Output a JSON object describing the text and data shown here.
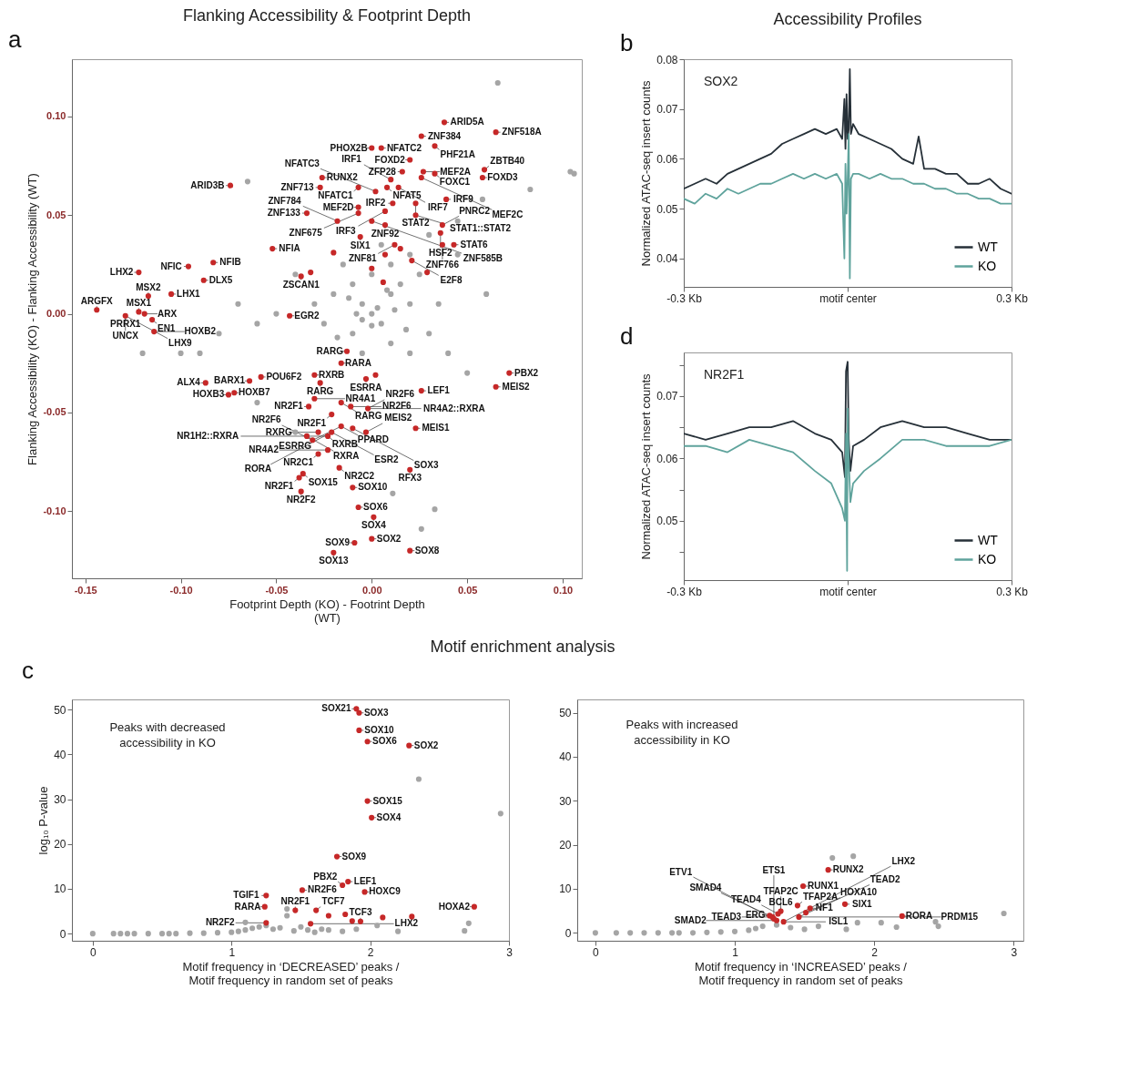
{
  "chart_data": [
    {
      "type": "scatter",
      "title": "Flanking Accessibility & Footprint Depth",
      "xlabel": "Footprint Depth (KO) - Footrint Depth (WT)",
      "ylabel": "Flanking Accessibility (KO) - Flanking Accessibility (WT)",
      "marker": "circle",
      "xlim": [
        -0.157,
        0.11
      ],
      "ylim": [
        -0.134,
        0.129
      ],
      "xticks": [
        {
          "value": -0.15,
          "label": "-0.15"
        },
        {
          "value": -0.1,
          "label": "-0.10"
        },
        {
          "value": -0.05,
          "label": "-0.05"
        },
        {
          "value": 0,
          "label": "0.00"
        },
        {
          "value": 0.05,
          "label": "0.05"
        },
        {
          "value": 0.1,
          "label": "0.10"
        }
      ],
      "yticks": [
        {
          "value": -0.1,
          "label": "-0.10"
        },
        {
          "value": -0.05,
          "label": "-0.05"
        },
        {
          "value": 0,
          "label": "0.00"
        },
        {
          "value": 0.05,
          "label": "0.05"
        },
        {
          "value": 0.1,
          "label": "0.10"
        }
      ],
      "series": [
        {
          "color": "#a5a5a5",
          "x": [
            0.066,
            0.104,
            0.106,
            0.083,
            0.058,
            0.045,
            0.03,
            0.02,
            0.01,
            0.0,
            -0.01,
            -0.02,
            0.01,
            0.02,
            0.0,
            -0.005,
            0.005,
            -0.01,
            0.01,
            0.015,
            -0.015,
            0.005,
            -0.005,
            0.02,
            0.03,
            -0.025,
            -0.03,
            0.025,
            0.035,
            0.04,
            0.05,
            0.06,
            0.045,
            -0.04,
            -0.05,
            -0.06,
            -0.07,
            -0.08,
            -0.09,
            -0.1,
            -0.12,
            -0.065,
            -0.06,
            -0.04,
            0.011,
            0.033,
            0.026,
            -0.005,
            0.003,
            -0.012,
            0.018,
            -0.018,
            0.008,
            0.0,
            -0.008,
            0.012
          ],
          "values": [
            0.117,
            0.072,
            0.071,
            0.063,
            0.058,
            0.047,
            0.04,
            0.03,
            0.025,
            0.02,
            0.015,
            0.01,
            0.01,
            0.005,
            0.0,
            0.005,
            -0.005,
            -0.01,
            -0.015,
            0.015,
            0.025,
            0.035,
            -0.02,
            -0.02,
            -0.01,
            -0.005,
            0.005,
            0.02,
            0.005,
            -0.02,
            -0.03,
            0.01,
            0.03,
            0.02,
            0.0,
            -0.005,
            0.005,
            -0.01,
            -0.02,
            -0.02,
            -0.02,
            0.067,
            -0.045,
            -0.06,
            -0.091,
            -0.099,
            -0.109,
            -0.003,
            0.003,
            0.008,
            -0.008,
            -0.012,
            0.012,
            -0.006,
            0.0,
            0.002
          ]
        },
        {
          "color": "#c62828",
          "x": [
            0.038,
            0.026,
            0.065,
            0.033,
            0.005,
            0.0,
            0.02,
            0.016,
            0.027,
            0.033,
            0.059,
            0.058,
            0.01,
            -0.026,
            -0.027,
            -0.007,
            0.002,
            0.008,
            0.014,
            -0.074,
            0.039,
            0.023,
            0.011,
            -0.007,
            -0.034,
            -0.007,
            0.023,
            -0.018,
            0.037,
            0.036,
            0.007,
            0.043,
            -0.052,
            -0.037,
            -0.032,
            0.021,
            0.015,
            0.007,
            0.0,
            0.006,
            0.029,
            -0.02,
            -0.122,
            -0.096,
            -0.083,
            -0.088,
            -0.105,
            -0.117,
            -0.144,
            -0.129,
            -0.122,
            -0.119,
            -0.115,
            -0.114,
            -0.043,
            -0.058,
            -0.064,
            -0.087,
            -0.075,
            -0.072,
            -0.013,
            -0.016,
            -0.03,
            -0.027,
            -0.003,
            0.002,
            0.026,
            0.072,
            0.065,
            -0.033,
            -0.03,
            -0.021,
            -0.011,
            -0.002,
            -0.016,
            -0.016,
            -0.01,
            -0.003,
            0.023,
            -0.034,
            -0.028,
            -0.031,
            -0.021,
            -0.023,
            -0.028,
            -0.023,
            -0.017,
            0.02,
            -0.036,
            -0.038,
            -0.037,
            -0.01,
            -0.007,
            0.001,
            0.0,
            -0.009,
            -0.02,
            0.02,
            0.026,
            0.007,
            0.0,
            -0.006,
            0.012,
            0.037
          ],
          "values": [
            0.097,
            0.09,
            0.092,
            0.085,
            0.084,
            0.084,
            0.078,
            0.072,
            0.072,
            0.071,
            0.073,
            0.069,
            0.068,
            0.069,
            0.064,
            0.064,
            0.062,
            0.064,
            0.064,
            0.065,
            0.058,
            0.056,
            0.056,
            0.054,
            0.051,
            0.051,
            0.05,
            0.047,
            0.045,
            0.041,
            0.045,
            0.035,
            0.033,
            0.019,
            0.021,
            0.027,
            0.033,
            0.03,
            0.023,
            0.016,
            0.021,
            0.031,
            0.021,
            0.024,
            0.026,
            0.017,
            0.01,
            0.009,
            0.002,
            -0.001,
            0.001,
            0.0,
            -0.003,
            -0.009,
            -0.001,
            -0.032,
            -0.034,
            -0.035,
            -0.041,
            -0.04,
            -0.019,
            -0.025,
            -0.031,
            -0.035,
            -0.033,
            -0.031,
            -0.039,
            -0.03,
            -0.037,
            -0.047,
            -0.043,
            -0.051,
            -0.047,
            -0.048,
            -0.045,
            -0.057,
            -0.058,
            -0.06,
            -0.058,
            -0.062,
            -0.06,
            -0.064,
            -0.06,
            -0.062,
            -0.071,
            -0.069,
            -0.078,
            -0.079,
            -0.081,
            -0.083,
            -0.09,
            -0.088,
            -0.098,
            -0.103,
            -0.114,
            -0.116,
            -0.121,
            -0.12,
            0.069,
            0.052,
            0.047,
            0.039,
            0.035,
            0.035
          ]
        }
      ],
      "annotations": [
        "a",
        {
          "text": "NFATC2",
          "x": 0.005,
          "y": 0.084
        },
        {
          "text": "ZFP28",
          "x": 0.016,
          "y": 0.072
        },
        {
          "text": "ZNF384",
          "x": 0.026,
          "y": 0.09
        },
        {
          "text": "ARID5A",
          "x": 0.038,
          "y": 0.097
        },
        {
          "text": "PHF21A",
          "x": 0.033,
          "y": 0.085
        },
        {
          "text": "ZNF518A",
          "x": 0.065,
          "y": 0.092
        },
        {
          "text": "PHOX2B",
          "x": 0.0,
          "y": 0.084
        },
        {
          "text": "FOXD2",
          "x": 0.02,
          "y": 0.078
        },
        {
          "text": "MEF2A",
          "x": 0.027,
          "y": 0.072
        },
        {
          "text": "FOXD3",
          "x": 0.058,
          "y": 0.069
        },
        {
          "text": "RUNX2",
          "x": -0.026,
          "y": 0.069
        },
        {
          "text": "NFAT5",
          "x": 0.008,
          "y": 0.064
        },
        {
          "text": "IRF1",
          "x": 0.01,
          "y": 0.068
        },
        {
          "text": "FOXC1",
          "x": 0.033,
          "y": 0.071
        },
        {
          "text": "ZBTB40",
          "x": 0.059,
          "y": 0.073
        },
        {
          "text": "ZNF713",
          "x": -0.027,
          "y": 0.064
        },
        {
          "text": "NFATC1",
          "x": -0.007,
          "y": 0.064
        },
        {
          "text": "IRF7",
          "x": 0.014,
          "y": 0.064
        },
        {
          "text": "MEF2C",
          "x": 0.026,
          "y": 0.069
        },
        {
          "text": "IRF9",
          "x": 0.039,
          "y": 0.058
        },
        {
          "text": "ARID3B",
          "x": -0.074,
          "y": 0.065
        },
        {
          "text": "MEF2D",
          "x": -0.007,
          "y": 0.054
        },
        {
          "text": "NFATC3",
          "x": 0.002,
          "y": 0.062
        },
        {
          "text": "IRF2",
          "x": 0.011,
          "y": 0.056
        },
        {
          "text": "STAT2",
          "x": 0.023,
          "y": 0.056
        },
        {
          "text": "ZNF133",
          "x": -0.034,
          "y": 0.051
        },
        {
          "text": "ZNF675",
          "x": -0.007,
          "y": 0.051
        },
        {
          "text": "IRF3",
          "x": 0.007,
          "y": 0.052
        },
        {
          "text": "STAT1::STAT2",
          "x": 0.023,
          "y": 0.05
        },
        {
          "text": "ZNF784",
          "x": -0.018,
          "y": 0.047
        },
        {
          "text": "ZNF585B",
          "x": 0.0,
          "y": 0.047
        },
        {
          "text": "ZNF92",
          "x": 0.007,
          "y": 0.045
        },
        {
          "text": "PNRC2",
          "x": 0.037,
          "y": 0.045
        },
        {
          "text": "SIX1",
          "x": -0.006,
          "y": 0.039
        },
        {
          "text": "ZNF81",
          "x": 0.012,
          "y": 0.035
        },
        {
          "text": "HSF2",
          "x": 0.036,
          "y": 0.041
        },
        {
          "text": "STAT6",
          "x": 0.043,
          "y": 0.035
        },
        {
          "text": "E2F8",
          "x": 0.021,
          "y": 0.027
        },
        {
          "text": "ZNF766",
          "x": 0.037,
          "y": 0.035
        },
        {
          "text": "NFIA",
          "x": -0.052,
          "y": 0.033
        },
        {
          "text": "ZSCAN1",
          "x": -0.037,
          "y": 0.019
        },
        {
          "text": "NFIC",
          "x": -0.096,
          "y": 0.024
        },
        {
          "text": "NFIB",
          "x": -0.083,
          "y": 0.026
        },
        {
          "text": "LHX2",
          "x": -0.122,
          "y": 0.021
        },
        {
          "text": "MSX1",
          "x": -0.122,
          "y": 0.001
        },
        {
          "text": "DLX5",
          "x": -0.088,
          "y": 0.017
        },
        {
          "text": "ARGFX",
          "x": -0.144,
          "y": 0.002
        },
        {
          "text": "MSX2",
          "x": -0.117,
          "y": 0.009
        },
        {
          "text": "LHX1",
          "x": -0.105,
          "y": 0.01
        },
        {
          "text": "PRRX1",
          "x": -0.129,
          "y": -0.001
        },
        {
          "text": "ARX",
          "x": -0.119,
          "y": 0.0
        },
        {
          "text": "UNCX",
          "x": -0.129,
          "y": -0.001
        },
        {
          "text": "EN1",
          "x": -0.115,
          "y": -0.003
        },
        {
          "text": "LHX9",
          "x": -0.129,
          "y": -0.001
        },
        {
          "text": "HOXB2",
          "x": -0.114,
          "y": -0.009
        },
        {
          "text": "EGR2",
          "x": -0.043,
          "y": -0.001
        },
        {
          "text": "POU6F2",
          "x": -0.058,
          "y": -0.032
        },
        {
          "text": "BARX1",
          "x": -0.064,
          "y": -0.034
        },
        {
          "text": "ALX4",
          "x": -0.087,
          "y": -0.035
        },
        {
          "text": "HOXB7",
          "x": -0.072,
          "y": -0.04
        },
        {
          "text": "HOXB3",
          "x": -0.075,
          "y": -0.041
        },
        {
          "text": "RARG",
          "x": -0.013,
          "y": -0.019
        },
        {
          "text": "RXRB",
          "x": -0.03,
          "y": -0.031
        },
        {
          "text": "RARA",
          "x": -0.016,
          "y": -0.025
        },
        {
          "text": "NR2F1",
          "x": -0.033,
          "y": -0.047
        },
        {
          "text": "RARG",
          "x": -0.027,
          "y": -0.035
        },
        {
          "text": "ESRRA",
          "x": -0.003,
          "y": -0.033
        },
        {
          "text": "LEF1",
          "x": 0.026,
          "y": -0.039
        },
        {
          "text": "PBX2",
          "x": 0.072,
          "y": -0.03
        },
        {
          "text": "MEIS2",
          "x": 0.065,
          "y": -0.037
        },
        {
          "text": "NR4A1",
          "x": -0.03,
          "y": -0.043
        },
        {
          "text": "RARG",
          "x": -0.016,
          "y": -0.045
        },
        {
          "text": "NR2F6",
          "x": -0.011,
          "y": -0.047
        },
        {
          "text": "NR4A2::RXRA",
          "x": -0.002,
          "y": -0.048
        },
        {
          "text": "NR2F1",
          "x": -0.021,
          "y": -0.051
        },
        {
          "text": "NR2F6",
          "x": -0.002,
          "y": -0.048
        },
        {
          "text": "PPARD",
          "x": -0.016,
          "y": -0.057
        },
        {
          "text": "ESRRG",
          "x": -0.016,
          "y": -0.057
        },
        {
          "text": "RXRG",
          "x": -0.028,
          "y": -0.06
        },
        {
          "text": "RXRA",
          "x": -0.034,
          "y": -0.062
        },
        {
          "text": "MEIS2",
          "x": -0.003,
          "y": -0.06
        },
        {
          "text": "MEIS1",
          "x": 0.023,
          "y": -0.058
        },
        {
          "text": "NR2F6",
          "x": -0.031,
          "y": -0.064
        },
        {
          "text": "RXRB",
          "x": -0.023,
          "y": -0.062
        },
        {
          "text": "ESR2",
          "x": -0.021,
          "y": -0.06
        },
        {
          "text": "SOX3",
          "x": -0.01,
          "y": -0.058
        },
        {
          "text": "NR2C1",
          "x": -0.028,
          "y": -0.071
        },
        {
          "text": "NR4A2",
          "x": -0.023,
          "y": -0.069
        },
        {
          "text": "RORA",
          "x": -0.021,
          "y": -0.06
        },
        {
          "text": "RFX3",
          "x": 0.02,
          "y": -0.079
        },
        {
          "text": "SOX15",
          "x": -0.036,
          "y": -0.081
        },
        {
          "text": "NR1H2::RXRA",
          "x": -0.023,
          "y": -0.062
        },
        {
          "text": "NR2C2",
          "x": -0.017,
          "y": -0.078
        },
        {
          "text": "NR2F1",
          "x": -0.038,
          "y": -0.083
        },
        {
          "text": "NR2F2",
          "x": -0.037,
          "y": -0.09
        },
        {
          "text": "SOX10",
          "x": -0.01,
          "y": -0.088
        },
        {
          "text": "SOX6",
          "x": -0.007,
          "y": -0.098
        },
        {
          "text": "SOX4",
          "x": 0.001,
          "y": -0.103
        },
        {
          "text": "SOX2",
          "x": 0.0,
          "y": -0.114
        },
        {
          "text": "SOX9",
          "x": -0.009,
          "y": -0.116
        },
        {
          "text": "SOX13",
          "x": -0.02,
          "y": -0.121
        },
        {
          "text": "SOX8",
          "x": 0.02,
          "y": -0.12
        }
      ]
    },
    {
      "type": "line",
      "title": "Accessibility Profiles",
      "ylabel": "Normalized ATAC-seq insert counts",
      "legend": "bottom right",
      "line_style": "solid",
      "xlim": [
        -0.3,
        0.3
      ],
      "ylim": [
        0.0343,
        0.08
      ],
      "xticks": [
        {
          "value": -0.3,
          "label": "-0.3 Kb"
        },
        {
          "value": 0,
          "label": "motif center"
        },
        {
          "value": 0.3,
          "label": "0.3 Kb"
        }
      ],
      "yticks": [
        0.04,
        0.05,
        0.06,
        0.07,
        0.08
      ],
      "series": [
        {
          "name": "WT",
          "color": "#263038",
          "x": [
            -0.3,
            -0.28,
            -0.26,
            -0.24,
            -0.22,
            -0.2,
            -0.18,
            -0.16,
            -0.14,
            -0.12,
            -0.1,
            -0.08,
            -0.06,
            -0.04,
            -0.02,
            -0.01,
            -0.006,
            -0.004,
            -0.002,
            0,
            0.002,
            0.004,
            0.006,
            0.01,
            0.02,
            0.04,
            0.06,
            0.08,
            0.1,
            0.12,
            0.13,
            0.14,
            0.16,
            0.18,
            0.2,
            0.22,
            0.24,
            0.26,
            0.28,
            0.3
          ],
          "values": [
            0.054,
            0.055,
            0.056,
            0.055,
            0.057,
            0.058,
            0.059,
            0.06,
            0.061,
            0.063,
            0.064,
            0.065,
            0.066,
            0.065,
            0.066,
            0.064,
            0.072,
            0.062,
            0.073,
            0.064,
            0.066,
            0.078,
            0.065,
            0.067,
            0.065,
            0.064,
            0.063,
            0.062,
            0.06,
            0.059,
            0.0645,
            0.058,
            0.058,
            0.057,
            0.057,
            0.055,
            0.055,
            0.056,
            0.054,
            0.053
          ]
        },
        {
          "name": "KO",
          "color": "#5fa39c",
          "x": [
            -0.3,
            -0.28,
            -0.26,
            -0.24,
            -0.22,
            -0.2,
            -0.18,
            -0.16,
            -0.14,
            -0.12,
            -0.1,
            -0.08,
            -0.06,
            -0.04,
            -0.02,
            -0.01,
            -0.006,
            -0.004,
            -0.002,
            0,
            0.002,
            0.004,
            0.006,
            0.01,
            0.02,
            0.04,
            0.06,
            0.08,
            0.1,
            0.12,
            0.14,
            0.16,
            0.18,
            0.2,
            0.22,
            0.24,
            0.26,
            0.28,
            0.3
          ],
          "values": [
            0.052,
            0.051,
            0.053,
            0.052,
            0.054,
            0.053,
            0.054,
            0.055,
            0.055,
            0.056,
            0.057,
            0.056,
            0.057,
            0.056,
            0.057,
            0.055,
            0.04,
            0.059,
            0.049,
            0.056,
            0.065,
            0.036,
            0.056,
            0.057,
            0.057,
            0.056,
            0.057,
            0.056,
            0.056,
            0.055,
            0.055,
            0.054,
            0.054,
            0.053,
            0.053,
            0.052,
            0.052,
            0.051,
            0.051
          ]
        }
      ],
      "annotations": [
        "b",
        "SOX2"
      ]
    },
    {
      "type": "line",
      "ylabel": "Normalized ATAC-seq insert counts",
      "legend": "bottom right",
      "line_style": "solid",
      "xlim": [
        -0.3,
        0.3
      ],
      "ylim": [
        0.0405,
        0.077
      ],
      "xticks": [
        {
          "value": -0.3,
          "label": "-0.3 Kb"
        },
        {
          "value": 0,
          "label": "motif center"
        },
        {
          "value": 0.3,
          "label": "0.3 Kb"
        }
      ],
      "yticks": [
        {
          "value": 0.045,
          "label": null
        },
        0.05,
        {
          "value": 0.055,
          "label": null
        },
        0.06,
        {
          "value": 0.065,
          "label": null
        },
        0.07,
        {
          "value": 0.075,
          "label": null
        }
      ],
      "series": [
        {
          "name": "WT",
          "color": "#263038",
          "x": [
            -0.3,
            -0.26,
            -0.22,
            -0.18,
            -0.14,
            -0.1,
            -0.06,
            -0.03,
            -0.01,
            -0.005,
            -0.003,
            0,
            0.002,
            0.005,
            0.01,
            0.03,
            0.06,
            0.1,
            0.14,
            0.18,
            0.22,
            0.26,
            0.3
          ],
          "values": [
            0.064,
            0.063,
            0.064,
            0.065,
            0.065,
            0.066,
            0.064,
            0.063,
            0.061,
            0.057,
            0.074,
            0.0755,
            0.063,
            0.058,
            0.062,
            0.063,
            0.065,
            0.066,
            0.065,
            0.065,
            0.064,
            0.063,
            0.063
          ]
        },
        {
          "name": "KO",
          "color": "#5fa39c",
          "x": [
            -0.3,
            -0.26,
            -0.22,
            -0.18,
            -0.14,
            -0.1,
            -0.06,
            -0.03,
            -0.01,
            -0.005,
            -0.003,
            -0.001,
            0,
            0.002,
            0.005,
            0.01,
            0.03,
            0.06,
            0.1,
            0.14,
            0.18,
            0.22,
            0.26,
            0.3
          ],
          "values": [
            0.062,
            0.062,
            0.061,
            0.063,
            0.062,
            0.061,
            0.058,
            0.056,
            0.052,
            0.05,
            0.064,
            0.042,
            0.068,
            0.06,
            0.053,
            0.056,
            0.058,
            0.06,
            0.063,
            0.063,
            0.062,
            0.062,
            0.062,
            0.063
          ]
        }
      ],
      "annotations": [
        "d",
        "NR2F1"
      ]
    },
    {
      "type": "scatter",
      "title": "Motif enrichment analysis",
      "xlabel": "Motif frequency in ‘DECREASED’ peaks / Motif frequency in random set of peaks",
      "ylabel": "log₁₀ P-value",
      "marker": "circle",
      "xlim": [
        -0.15,
        3.0
      ],
      "ylim": [
        -1.6,
        52.3
      ],
      "xticks": [
        0,
        1,
        2,
        3
      ],
      "yticks": [
        0,
        10,
        20,
        30,
        40,
        50
      ],
      "series": [
        {
          "color": "#a5a5a5",
          "x": [
            0,
            0.15,
            0.2,
            0.25,
            0.3,
            0.4,
            0.5,
            0.55,
            0.6,
            0.7,
            0.8,
            0.9,
            1.0,
            1.05,
            1.1,
            1.15,
            1.2,
            1.25,
            1.3,
            1.35,
            1.4,
            1.45,
            1.5,
            1.55,
            1.6,
            1.7,
            1.8,
            1.9,
            2.05,
            2.35,
            2.94,
            2.71,
            2.68,
            1.1,
            1.4,
            1.65,
            2.2
          ],
          "values": [
            0,
            0,
            0,
            0,
            0,
            0,
            0,
            0,
            0,
            0.1,
            0.1,
            0.2,
            0.3,
            0.5,
            0.8,
            1.2,
            1.5,
            1.8,
            1.0,
            1.3,
            4.0,
            0.6,
            1.5,
            0.8,
            0.3,
            0.8,
            0.5,
            1.0,
            1.8,
            34.5,
            26.8,
            2.3,
            0.6,
            2.5,
            5.5,
            1.0,
            0.5
          ]
        },
        {
          "color": "#c62828",
          "x": [
            1.9,
            1.92,
            1.92,
            1.98,
            2.28,
            1.98,
            2.01,
            1.76,
            1.84,
            1.8,
            1.51,
            1.25,
            1.96,
            1.24,
            1.46,
            1.61,
            1.93,
            2.75,
            1.25,
            1.57,
            2.3,
            1.82,
            2.09,
            1.7,
            1.87
          ],
          "values": [
            50.2,
            49.3,
            45.4,
            42.9,
            42.0,
            29.6,
            25.9,
            17.2,
            11.6,
            10.8,
            9.7,
            8.5,
            9.3,
            6.0,
            5.2,
            5.2,
            2.7,
            6.0,
            2.4,
            2.2,
            3.8,
            4.3,
            3.6,
            4.0,
            2.8
          ]
        }
      ],
      "annotations": [
        "c",
        "Peaks with decreased accessibility in KO",
        {
          "text": "SOX21",
          "x": 1.9,
          "y": 50.2
        },
        {
          "text": "SOX3",
          "x": 1.92,
          "y": 49.3
        },
        {
          "text": "SOX10",
          "x": 1.92,
          "y": 45.4
        },
        {
          "text": "SOX6",
          "x": 1.98,
          "y": 42.9
        },
        {
          "text": "SOX2",
          "x": 2.28,
          "y": 42.0
        },
        {
          "text": "SOX15",
          "x": 1.98,
          "y": 29.6
        },
        {
          "text": "SOX4",
          "x": 2.01,
          "y": 25.9
        },
        {
          "text": "SOX9",
          "x": 1.76,
          "y": 17.2
        },
        {
          "text": "LEF1",
          "x": 1.84,
          "y": 11.6
        },
        {
          "text": "NR2F6",
          "x": 1.51,
          "y": 9.7
        },
        {
          "text": "TGIF1",
          "x": 1.25,
          "y": 8.5
        },
        {
          "text": "PBX2",
          "x": 1.8,
          "y": 10.8
        },
        {
          "text": "RARA",
          "x": 1.24,
          "y": 6.0
        },
        {
          "text": "NR2F1",
          "x": 1.46,
          "y": 5.2
        },
        {
          "text": "HOXC9",
          "x": 1.96,
          "y": 9.3
        },
        {
          "text": "TCF7",
          "x": 1.61,
          "y": 5.2
        },
        {
          "text": "HOXA2",
          "x": 2.75,
          "y": 6.0
        },
        {
          "text": "TCF3",
          "x": 1.93,
          "y": 2.7
        },
        {
          "text": "NR2F2",
          "x": 1.25,
          "y": 2.4
        },
        {
          "text": "LHX2",
          "x": 1.57,
          "y": 2.2
        }
      ]
    },
    {
      "type": "scatter",
      "xlabel": "Motif frequency in ‘INCREASED’ peaks / Motif frequency in random set of peaks",
      "marker": "circle",
      "xlim": [
        -0.13,
        3.07
      ],
      "ylim": [
        -1.8,
        53
      ],
      "xticks": [
        0,
        1,
        2,
        3
      ],
      "yticks": [
        0,
        10,
        20,
        30,
        40,
        50
      ],
      "series": [
        {
          "color": "#a5a5a5",
          "x": [
            0,
            0.15,
            0.25,
            0.35,
            0.45,
            0.55,
            0.6,
            0.7,
            0.8,
            0.9,
            1.0,
            1.1,
            1.15,
            1.2,
            1.3,
            1.4,
            1.5,
            1.6,
            1.7,
            1.85,
            2.93,
            2.44,
            2.46,
            2.05,
            1.88,
            2.16,
            1.8
          ],
          "values": [
            0,
            0,
            0,
            0,
            0,
            0,
            0,
            0,
            0.1,
            0.2,
            0.3,
            0.6,
            1.0,
            1.5,
            1.8,
            1.2,
            0.8,
            1.5,
            17.0,
            17.4,
            4.4,
            2.5,
            1.5,
            2.3,
            2.3,
            1.3,
            0.8
          ]
        },
        {
          "color": "#c62828",
          "x": [
            1.67,
            1.49,
            1.79,
            1.54,
            1.45,
            1.51,
            2.2,
            1.33,
            1.31,
            1.25,
            1.27,
            1.46,
            1.3,
            1.35,
            1.28
          ],
          "values": [
            14.3,
            10.6,
            6.5,
            5.6,
            6.2,
            4.6,
            3.8,
            4.9,
            4.3,
            3.9,
            3.6,
            3.6,
            2.8,
            2.5,
            3.2
          ]
        }
      ],
      "annotations": [
        "Peaks with increased accessibility in KO",
        {
          "text": "RUNX2",
          "x": 1.67,
          "y": 14.3
        },
        {
          "text": "RUNX1",
          "x": 1.49,
          "y": 10.6
        },
        {
          "text": "BCL6",
          "x": 1.33,
          "y": 4.9
        },
        {
          "text": "TFAP2A",
          "x": 1.45,
          "y": 6.2
        },
        {
          "text": "ERG",
          "x": 1.25,
          "y": 3.9
        },
        {
          "text": "TEAD4",
          "x": 1.31,
          "y": 4.3
        },
        {
          "text": "SIX1",
          "x": 1.79,
          "y": 6.5
        },
        {
          "text": "TEAD3",
          "x": 1.27,
          "y": 3.6
        },
        {
          "text": "TFAP2C",
          "x": 1.33,
          "y": 4.9
        },
        {
          "text": "NF1",
          "x": 1.54,
          "y": 5.6
        },
        {
          "text": "SMAD4",
          "x": 1.25,
          "y": 3.9
        },
        {
          "text": "HOXA10",
          "x": 1.51,
          "y": 4.6
        },
        {
          "text": "RORA",
          "x": 2.2,
          "y": 3.8
        },
        {
          "text": "SMAD2",
          "x": 1.3,
          "y": 2.8
        },
        {
          "text": "ISL1",
          "x": 1.35,
          "y": 2.5
        },
        {
          "text": "ETS1",
          "x": 1.28,
          "y": 3.2
        },
        {
          "text": "TEAD2",
          "x": 1.46,
          "y": 3.6
        },
        {
          "text": "ETV1",
          "x": 1.3,
          "y": 2.8
        },
        {
          "text": "LHX2",
          "x": 1.35,
          "y": 2.5
        },
        {
          "text": "PRDM15",
          "x": 1.46,
          "y": 3.6
        }
      ]
    }
  ]
}
